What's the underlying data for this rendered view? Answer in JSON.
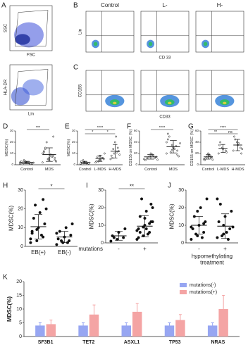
{
  "panel_labels": [
    "A",
    "B",
    "C"
  ],
  "flow": {
    "A": [
      {
        "ylabel": "SSC",
        "xlabel": "FSC"
      },
      {
        "ylabel": "HLA-DR",
        "xlabel": "Lin"
      }
    ],
    "B": {
      "columns": [
        "Control",
        "L-",
        "H-"
      ],
      "ylabel": "Lin",
      "xlabel": "CD 33"
    },
    "C": {
      "ylabel": "CD155",
      "xlabel": "CD33"
    }
  },
  "chart_data": [
    {
      "type": "dot",
      "label": "D",
      "ylabel": "MDSC(%)",
      "categories": [
        "Control",
        "MDS"
      ],
      "ylim": [
        0,
        30
      ],
      "yticks": [
        0,
        10,
        20,
        30
      ],
      "significance": [
        "***"
      ],
      "groups": [
        {
          "values": [
            1,
            2,
            1.5,
            3,
            2,
            1,
            0.5,
            2.5,
            1.8,
            4,
            1.2,
            2,
            3,
            0.8,
            1.5
          ],
          "mean": 2,
          "sd": 1
        },
        {
          "values": [
            2,
            5,
            8,
            12,
            4,
            6,
            15,
            9,
            3,
            20,
            7,
            10,
            5,
            25,
            11,
            6,
            4,
            14,
            8,
            3
          ],
          "mean": 9,
          "sd": 6
        }
      ]
    },
    {
      "type": "dot",
      "label": "E",
      "ylabel": "MDSC(%)",
      "categories": [
        "Control",
        "L-MDS",
        "H-MDS"
      ],
      "ylim": [
        0,
        30
      ],
      "yticks": [
        0,
        10,
        20,
        30
      ],
      "significance": [
        "****",
        "*",
        "*"
      ],
      "groups": [
        {
          "values": [
            1,
            2,
            1.5,
            3,
            2,
            1,
            0.5,
            2.5,
            1.8,
            4,
            1.2
          ],
          "mean": 2,
          "sd": 1
        },
        {
          "values": [
            2,
            4,
            6,
            3,
            8,
            5,
            7,
            4,
            10,
            3,
            6
          ],
          "mean": 5.5,
          "sd": 2.5
        },
        {
          "values": [
            5,
            10,
            15,
            8,
            20,
            12,
            6,
            25,
            9,
            14,
            11
          ],
          "mean": 12,
          "sd": 6
        }
      ]
    },
    {
      "type": "dot",
      "label": "F",
      "ylabel": "CD155 on MDSC (%)",
      "categories": [
        "Control",
        "MDS"
      ],
      "ylim": [
        0,
        60
      ],
      "yticks": [
        0,
        20,
        40,
        60
      ],
      "significance": [
        "****"
      ],
      "groups": [
        {
          "values": [
            10,
            15,
            12,
            8,
            20,
            14,
            11,
            18,
            9,
            13,
            16
          ],
          "mean": 14,
          "sd": 4
        },
        {
          "values": [
            20,
            35,
            25,
            45,
            30,
            15,
            50,
            28,
            38,
            22,
            33,
            40,
            26,
            18,
            55,
            31
          ],
          "mean": 32,
          "sd": 11
        }
      ]
    },
    {
      "type": "dot",
      "label": "G",
      "ylabel": "CD155 on MDSC (%)",
      "categories": [
        "Control",
        "L-MDS",
        "H-MDS"
      ],
      "ylim": [
        0,
        60
      ],
      "yticks": [
        0,
        20,
        40,
        60
      ],
      "significance": [
        "****",
        "**",
        "ns"
      ],
      "groups": [
        {
          "values": [
            10,
            15,
            12,
            8,
            20,
            14,
            11,
            18,
            9,
            13,
            16
          ],
          "mean": 14,
          "sd": 4
        },
        {
          "values": [
            20,
            30,
            25,
            35,
            28,
            22,
            40
          ],
          "mean": 29,
          "sd": 7
        },
        {
          "values": [
            25,
            40,
            30,
            50,
            35,
            20,
            45,
            38,
            28
          ],
          "mean": 35,
          "sd": 10
        }
      ]
    },
    {
      "type": "dot",
      "label": "H",
      "ylabel": "MDSC(%)",
      "categories": [
        "EB(+)",
        "EB(-)"
      ],
      "ylim": [
        0,
        30
      ],
      "yticks": [
        0,
        10,
        20,
        30
      ],
      "significance": [
        "*"
      ],
      "groups": [
        {
          "values": [
            2,
            3,
            5,
            8,
            10,
            12,
            15,
            18,
            20,
            22,
            6,
            4,
            9,
            25,
            7
          ],
          "mean": 10.5,
          "sd": 6.5
        },
        {
          "values": [
            1,
            2,
            3,
            4,
            5,
            6,
            8,
            10,
            12,
            3,
            2,
            7
          ],
          "mean": 5,
          "sd": 3
        }
      ]
    },
    {
      "type": "dot",
      "label": "I",
      "ylabel": "MDSC(%)",
      "xlabel": [
        "mutations"
      ],
      "categories": [
        "-",
        "+"
      ],
      "ylim": [
        0,
        30
      ],
      "yticks": [
        0,
        10,
        20,
        30
      ],
      "significance": [
        "**"
      ],
      "groups": [
        {
          "values": [
            1,
            2,
            3,
            4,
            6,
            8,
            3
          ],
          "mean": 4,
          "sd": 2.5
        },
        {
          "values": [
            2,
            4,
            6,
            8,
            10,
            12,
            15,
            18,
            20,
            25,
            5,
            7,
            9,
            11,
            3,
            14,
            22,
            6,
            8,
            12
          ],
          "mean": 9.5,
          "sd": 6
        }
      ]
    },
    {
      "type": "dot",
      "label": "J",
      "ylabel": "MDSC(%)",
      "xlabel": [
        "hypomethylating",
        "treatment"
      ],
      "categories": [
        "-",
        "+"
      ],
      "ylim": [
        0,
        30
      ],
      "yticks": [
        0,
        10,
        20,
        30
      ],
      "significance": [],
      "groups": [
        {
          "values": [
            2,
            4,
            6,
            8,
            10,
            12,
            15,
            20,
            25,
            5,
            3,
            9,
            18,
            11
          ],
          "mean": 10,
          "sd": 5
        },
        {
          "values": [
            3,
            5,
            8,
            12,
            15,
            18,
            22,
            6,
            9,
            4,
            2,
            25,
            10
          ],
          "mean": 9.5,
          "sd": 7
        }
      ]
    },
    {
      "type": "bar",
      "label": "K",
      "ylabel": "MDSC(%)",
      "categories": [
        "SF3B1",
        "TET2",
        "ASXL1",
        "TP53",
        "NRAS"
      ],
      "ylim": [
        0,
        20
      ],
      "yticks": [
        0,
        5,
        10,
        15,
        20
      ],
      "legend": "top-right",
      "series": [
        {
          "name": "mutations(-)",
          "color": "#97a6f2",
          "values": [
            4,
            4,
            4,
            4,
            4
          ],
          "errors": [
            1,
            1,
            1,
            1,
            1
          ]
        },
        {
          "name": "mutations(+)",
          "color": "#f4a4a4",
          "values": [
            4.5,
            8,
            9,
            6,
            10
          ],
          "errors": [
            1.5,
            3.5,
            3,
            2,
            5
          ]
        }
      ]
    }
  ]
}
